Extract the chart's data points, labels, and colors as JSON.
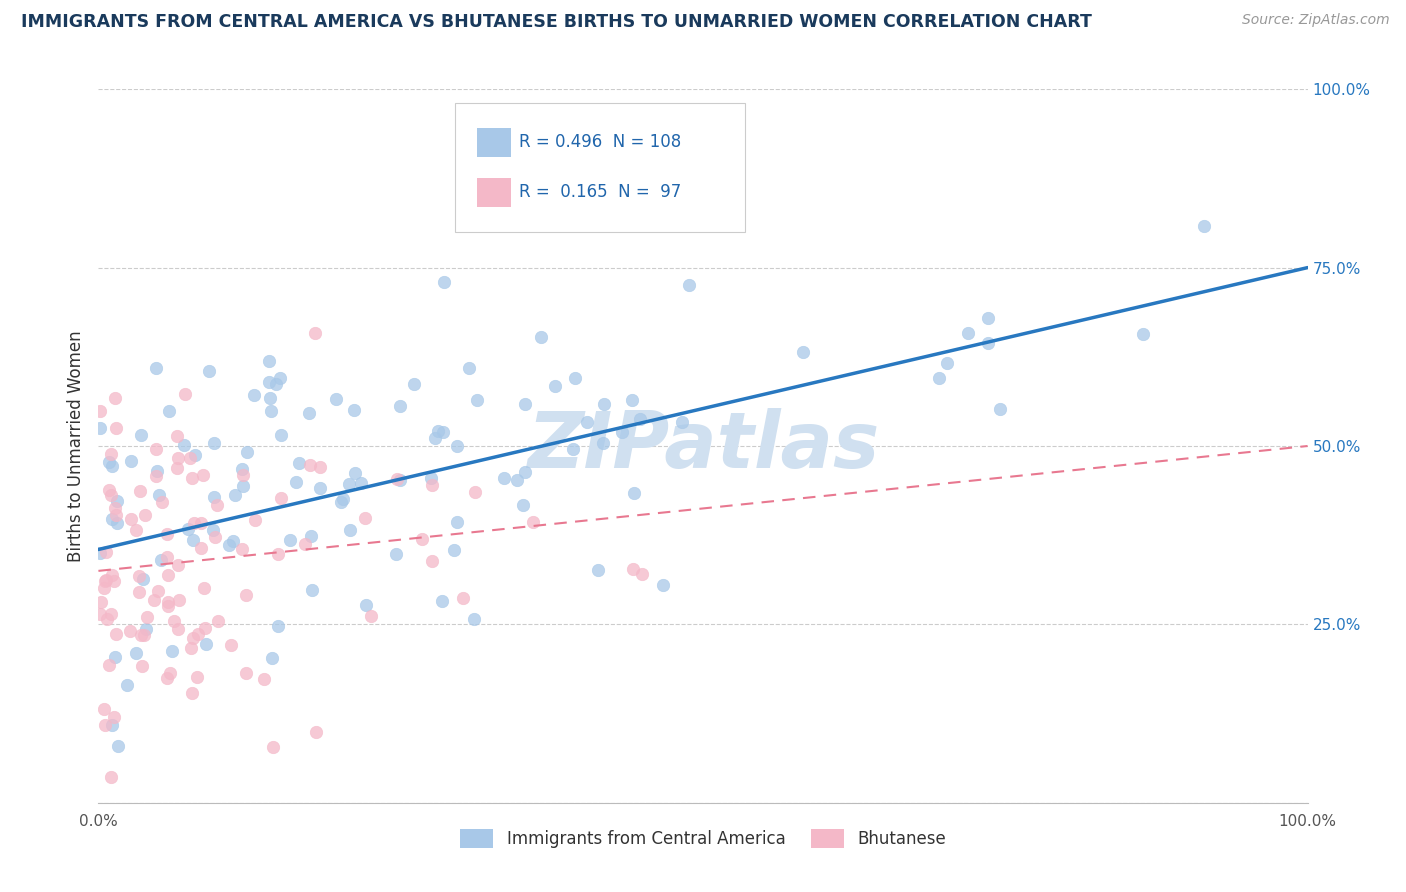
{
  "title": "IMMIGRANTS FROM CENTRAL AMERICA VS BHUTANESE BIRTHS TO UNMARRIED WOMEN CORRELATION CHART",
  "source": "Source: ZipAtlas.com",
  "ylabel": "Births to Unmarried Women",
  "xlim": [
    0.0,
    1.0
  ],
  "ylim": [
    0.0,
    1.0
  ],
  "blue_label": "Immigrants from Central America",
  "pink_label": "Bhutanese",
  "blue_R": 0.496,
  "blue_N": 108,
  "pink_R": 0.165,
  "pink_N": 97,
  "blue_color": "#a8c8e8",
  "pink_color": "#f4b8c8",
  "blue_line_color": "#2878c0",
  "pink_line_color": "#e87890",
  "title_color": "#1a3a5c",
  "source_color": "#999999",
  "watermark": "ZIPatlas",
  "watermark_color": "#d0e0f0",
  "background_color": "#ffffff",
  "grid_color": "#cccccc",
  "legend_text_color": "#2166ac",
  "blue_scatter_seed": 42,
  "pink_scatter_seed": 77,
  "blue_intercept": 0.355,
  "blue_slope": 0.395,
  "pink_intercept": 0.325,
  "pink_slope": 0.175
}
